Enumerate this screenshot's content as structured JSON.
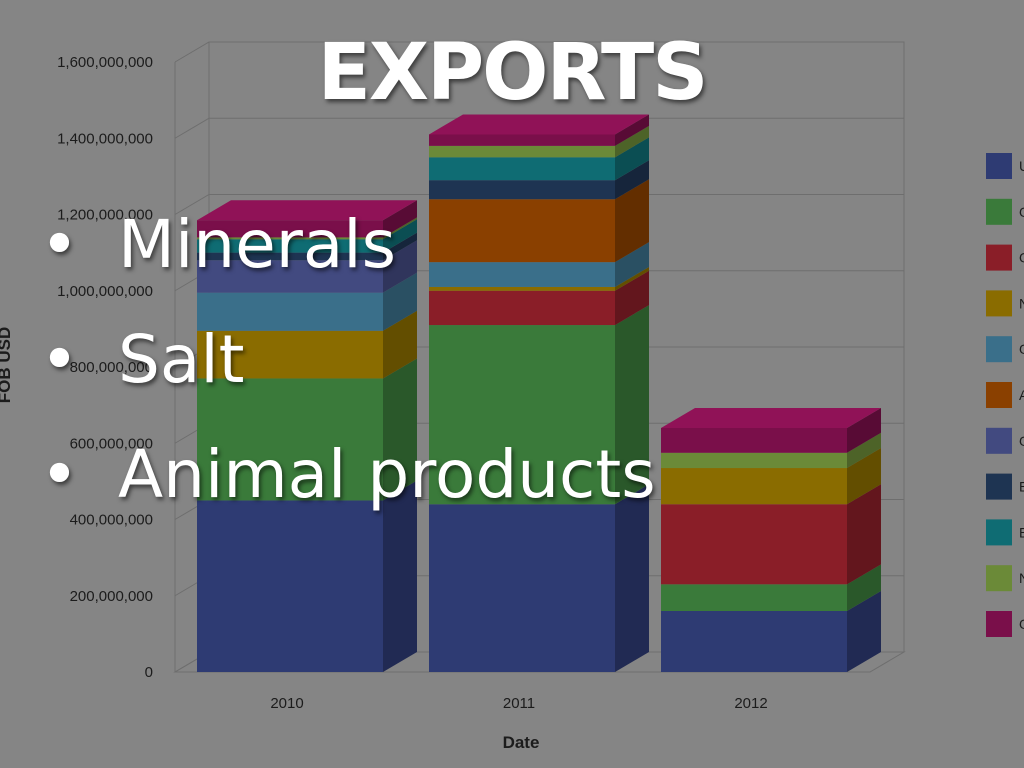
{
  "slide": {
    "title": "EXPORTS",
    "bullets": [
      "Minerals",
      "Salt",
      "Animal products"
    ]
  },
  "chart_data": {
    "type": "bar",
    "stacked": true,
    "three_d": true,
    "xlabel": "Date",
    "ylabel": "FOB USD",
    "ylim": [
      0,
      1600000000
    ],
    "yticks": [
      "0",
      "200,000,000",
      "400,000,000",
      "600,000,000",
      "800,000,000",
      "1,000,000,000",
      "1,200,000,000",
      "1,400,000,000",
      "1,600,000,000"
    ],
    "categories": [
      "2010",
      "2011",
      "2012"
    ],
    "grid": true,
    "legend_position": "right",
    "series": [
      {
        "name": "U",
        "color": "#2e3b73",
        "values": [
          450000000,
          440000000,
          160000000
        ]
      },
      {
        "name": "O",
        "color": "#3a7a3a",
        "values": [
          320000000,
          470000000,
          70000000
        ]
      },
      {
        "name": "O",
        "color": "#8a1e28",
        "values": [
          0,
          90000000,
          210000000
        ]
      },
      {
        "name": "N",
        "color": "#8a6c00",
        "values": [
          125000000,
          10000000,
          95000000
        ]
      },
      {
        "name": "O",
        "color": "#3a6f8a",
        "values": [
          100000000,
          65000000,
          0
        ]
      },
      {
        "name": "A",
        "color": "#8a4000",
        "values": [
          0,
          165000000,
          0
        ]
      },
      {
        "name": "O",
        "color": "#424a80",
        "values": [
          85000000,
          0,
          0
        ]
      },
      {
        "name": "E",
        "color": "#1e3452",
        "values": [
          20000000,
          50000000,
          0
        ]
      },
      {
        "name": "E",
        "color": "#0f6c73",
        "values": [
          35000000,
          60000000,
          0
        ]
      },
      {
        "name": "N",
        "color": "#6b8a38",
        "values": [
          5000000,
          30000000,
          40000000
        ]
      },
      {
        "name": "O",
        "color": "#7a0f4a",
        "values": [
          45000000,
          30000000,
          65000000
        ]
      }
    ]
  }
}
